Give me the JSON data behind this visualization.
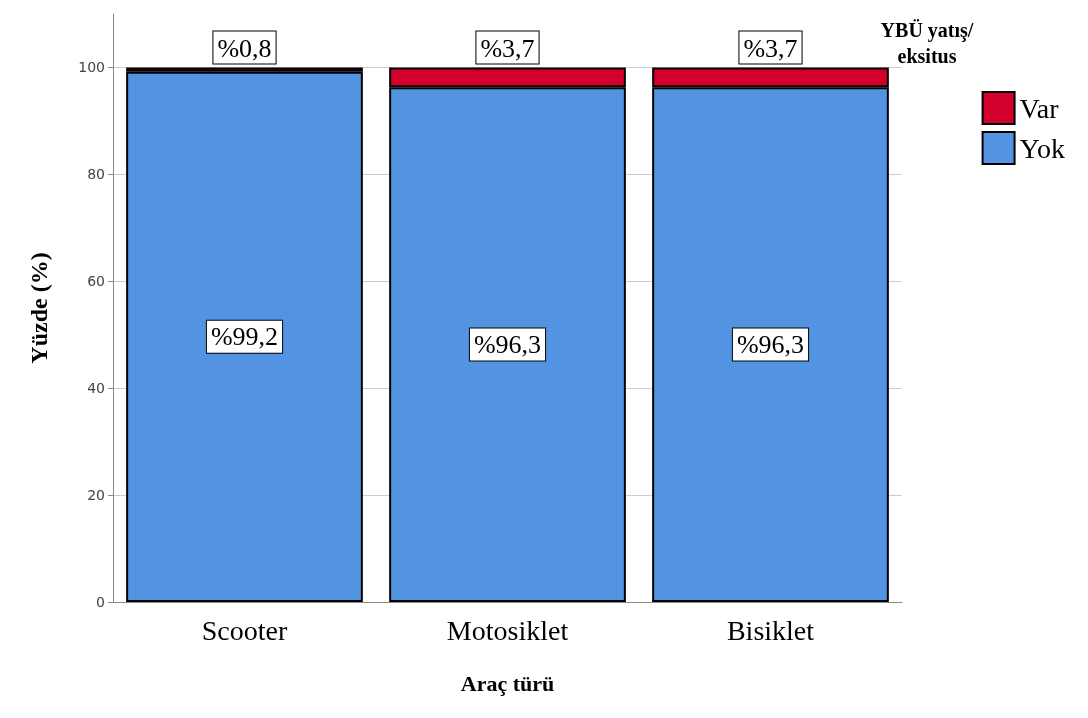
{
  "chart_data": {
    "type": "bar",
    "stacked": true,
    "xlabel": "Araç türü",
    "ylabel": "Yüzde (%)",
    "legend_title": "YBÜ yatış/eksitus",
    "legend": "top right",
    "categories": [
      "Scooter",
      "Motosiklet",
      "Bisiklet"
    ],
    "series": [
      {
        "name": "Yok",
        "color": "#5294e2",
        "values": [
          99.2,
          96.3,
          96.3
        ],
        "value_labels": [
          "%99,2",
          "%96,3",
          "%96,3"
        ]
      },
      {
        "name": "Var",
        "color": "#d2002a",
        "values": [
          0.8,
          3.7,
          3.7
        ],
        "value_labels": [
          "%0,8",
          "%3,7",
          "%3,7"
        ]
      }
    ],
    "ylim": [
      0,
      110
    ],
    "yticks": [
      0,
      20,
      40,
      60,
      80,
      100
    ],
    "grid": "y"
  }
}
